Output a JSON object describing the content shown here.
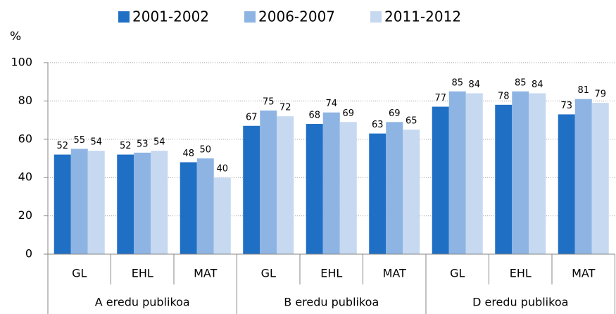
{
  "chart_data": {
    "type": "bar",
    "y_label": "%",
    "categories": [
      "GL",
      "EHL",
      "MAT",
      "GL",
      "EHL",
      "MAT",
      "GL",
      "EHL",
      "MAT"
    ],
    "groups": [
      "A eredu publikoa",
      "B eredu publikoa",
      "D eredu publikoa"
    ],
    "series": [
      {
        "name": "2001-2002",
        "color": "#1f6fc5",
        "values": [
          52,
          52,
          48,
          67,
          68,
          63,
          77,
          78,
          73
        ]
      },
      {
        "name": "2006-2007",
        "color": "#8eb4e3",
        "values": [
          55,
          53,
          50,
          75,
          74,
          69,
          85,
          85,
          81
        ]
      },
      {
        "name": "2011-2012",
        "color": "#c6d9f1",
        "values": [
          54,
          54,
          40,
          72,
          69,
          65,
          84,
          84,
          79
        ]
      }
    ],
    "ylim": [
      0,
      100
    ],
    "yticks": [
      0,
      20,
      40,
      60,
      80,
      100
    ],
    "grid": true
  }
}
